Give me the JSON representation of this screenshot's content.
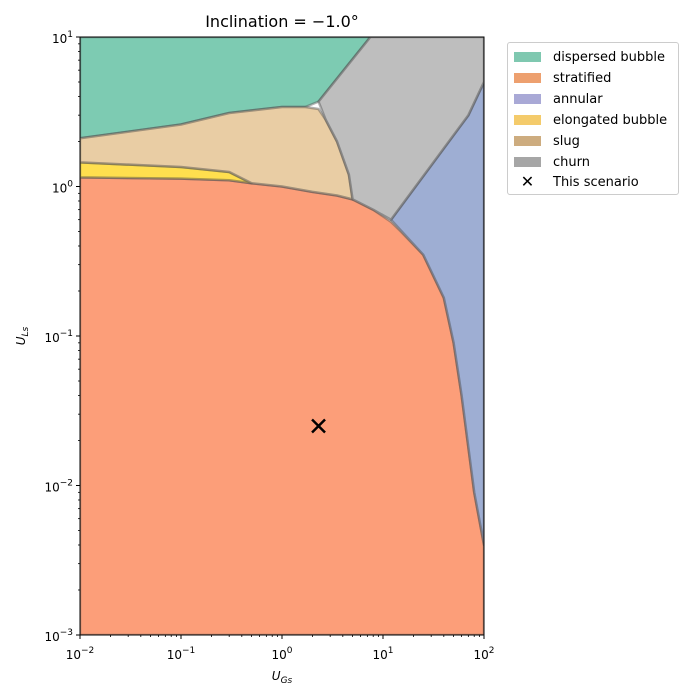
{
  "chart_data": {
    "type": "area",
    "title": "Inclination = −1.0°",
    "xlabel": "U_Gs",
    "ylabel": "U_Ls",
    "xscale": "log",
    "yscale": "log",
    "xlim": [
      0.01,
      100
    ],
    "ylim": [
      0.001,
      10
    ],
    "x_ticks": [
      {
        "value": 0.01,
        "base": "10",
        "exp": "−2"
      },
      {
        "value": 0.1,
        "base": "10",
        "exp": "−1"
      },
      {
        "value": 1,
        "base": "10",
        "exp": "0"
      },
      {
        "value": 10,
        "base": "10",
        "exp": "1"
      },
      {
        "value": 100,
        "base": "10",
        "exp": "2"
      }
    ],
    "y_ticks": [
      {
        "value": 0.001,
        "base": "10",
        "exp": "−3"
      },
      {
        "value": 0.01,
        "base": "10",
        "exp": "−2"
      },
      {
        "value": 0.1,
        "base": "10",
        "exp": "−1"
      },
      {
        "value": 1,
        "base": "10",
        "exp": "0"
      },
      {
        "value": 10,
        "base": "10",
        "exp": "1"
      }
    ],
    "regions": [
      {
        "name": "dispersed bubble",
        "color": "#66c2a5",
        "polygon": [
          [
            0.01,
            2.1
          ],
          [
            0.1,
            2.6
          ],
          [
            0.3,
            3.1
          ],
          [
            1,
            3.4
          ],
          [
            1.7,
            3.4
          ],
          [
            2.3,
            3.7
          ],
          [
            7.5,
            10
          ],
          [
            0.01,
            10
          ]
        ]
      },
      {
        "name": "stratified",
        "color": "#fc8d62",
        "polygon": [
          [
            0.01,
            0.001
          ],
          [
            100,
            0.001
          ],
          [
            100,
            0.004
          ],
          [
            80,
            0.009
          ],
          [
            60,
            0.04
          ],
          [
            50,
            0.09
          ],
          [
            40,
            0.18
          ],
          [
            25,
            0.35
          ],
          [
            15,
            0.5
          ],
          [
            12,
            0.58
          ],
          [
            8,
            0.7
          ],
          [
            5,
            0.82
          ],
          [
            3.5,
            0.87
          ],
          [
            2,
            0.92
          ],
          [
            1,
            1.0
          ],
          [
            0.5,
            1.05
          ],
          [
            0.3,
            1.1
          ],
          [
            0.1,
            1.13
          ],
          [
            0.01,
            1.15
          ]
        ]
      },
      {
        "name": "annular",
        "color": "#8da0cb",
        "polygon": [
          [
            100,
            0.004
          ],
          [
            80,
            0.009
          ],
          [
            60,
            0.04
          ],
          [
            50,
            0.09
          ],
          [
            40,
            0.18
          ],
          [
            25,
            0.35
          ],
          [
            12,
            0.6
          ],
          [
            70,
            3
          ],
          [
            100,
            5
          ],
          [
            100,
            0.004
          ]
        ]
      },
      {
        "name": "elongated bubble",
        "color": "#ffd92f",
        "polygon": [
          [
            0.01,
            1.15
          ],
          [
            0.1,
            1.13
          ],
          [
            0.3,
            1.1
          ],
          [
            0.5,
            1.05
          ],
          [
            0.3,
            1.25
          ],
          [
            0.1,
            1.35
          ],
          [
            0.01,
            1.45
          ]
        ]
      },
      {
        "name": "slug",
        "color": "#e5c494",
        "polygon": [
          [
            0.01,
            1.45
          ],
          [
            0.1,
            1.35
          ],
          [
            0.3,
            1.25
          ],
          [
            0.5,
            1.05
          ],
          [
            1,
            1.0
          ],
          [
            2,
            0.92
          ],
          [
            3.5,
            0.87
          ],
          [
            5,
            0.82
          ],
          [
            4.6,
            1.2
          ],
          [
            3.5,
            2
          ],
          [
            2.7,
            2.8
          ],
          [
            2.3,
            3.3
          ],
          [
            1.7,
            3.4
          ],
          [
            1,
            3.4
          ],
          [
            0.3,
            3.1
          ],
          [
            0.1,
            2.6
          ],
          [
            0.01,
            2.1
          ]
        ]
      },
      {
        "name": "churn",
        "color": "#b3b3b3",
        "polygon": [
          [
            5,
            0.82
          ],
          [
            8,
            0.7
          ],
          [
            12,
            0.6
          ],
          [
            70,
            3
          ],
          [
            100,
            5
          ],
          [
            100,
            10
          ],
          [
            7.5,
            10
          ],
          [
            2.3,
            3.7
          ],
          [
            2.7,
            2.8
          ],
          [
            3.5,
            2
          ],
          [
            4.6,
            1.2
          ]
        ]
      }
    ],
    "scenario": {
      "name": "This scenario",
      "x": 2.3,
      "y": 0.025,
      "marker": "✕"
    },
    "legend_position": "outside-right-top"
  },
  "legend": [
    {
      "label": "dispersed bubble",
      "color": "#7fc8b0"
    },
    {
      "label": "stratified",
      "color": "#eda06f"
    },
    {
      "label": "annular",
      "color": "#a9a9d6"
    },
    {
      "label": "elongated bubble",
      "color": "#f4cb6b"
    },
    {
      "label": "slug",
      "color": "#cdac7f"
    },
    {
      "label": "churn",
      "color": "#a6a6a6"
    },
    {
      "label": "This scenario",
      "marker": "✕"
    }
  ]
}
